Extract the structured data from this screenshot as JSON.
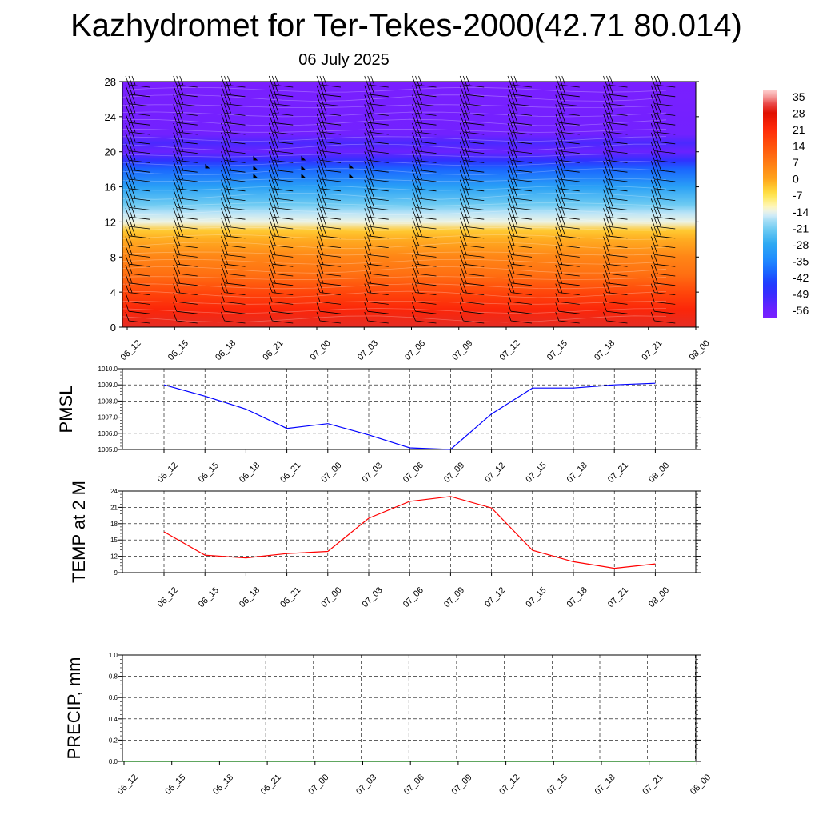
{
  "header": {
    "title": "Kazhydromet for Ter-Tekes-2000(42.71 80.014)",
    "date": "06 July 2025"
  },
  "time_labels_full": [
    "06_12",
    "06_15",
    "06_18",
    "06_21",
    "07_00",
    "07_03",
    "07_06",
    "07_09",
    "07_12",
    "07_15",
    "07_18",
    "07_21",
    "08_00"
  ],
  "chart_data": [
    {
      "id": "cross-section",
      "type": "heatmap",
      "xcategories": [
        "06_12",
        "06_15",
        "06_18",
        "06_21",
        "07_00",
        "07_03",
        "07_06",
        "07_09",
        "07_12",
        "07_15",
        "07_18",
        "07_21",
        "08_00"
      ],
      "ylim": [
        0,
        28
      ],
      "yticks": [
        0,
        4,
        8,
        12,
        16,
        20,
        24,
        28
      ],
      "colorbar": {
        "labels": [
          "35",
          "28",
          "21",
          "14",
          "7",
          "0",
          "-7",
          "-14",
          "-21",
          "-28",
          "-35",
          "-42",
          "-49",
          "-56"
        ],
        "range": [
          -60,
          38
        ]
      },
      "temperature_profile": [
        {
          "height": 0,
          "value": 30
        },
        {
          "height": 2,
          "value": 22
        },
        {
          "height": 4,
          "value": 16
        },
        {
          "height": 6,
          "value": 9
        },
        {
          "height": 8,
          "value": 5
        },
        {
          "height": 10,
          "value": -1
        },
        {
          "height": 11,
          "value": -4
        },
        {
          "height": 12,
          "value": -14
        },
        {
          "height": 13,
          "value": -17
        },
        {
          "height": 14,
          "value": -22
        },
        {
          "height": 16,
          "value": -30
        },
        {
          "height": 18,
          "value": -40
        },
        {
          "height": 19,
          "value": -48
        },
        {
          "height": 20,
          "value": -56
        },
        {
          "height": 21,
          "value": -52
        },
        {
          "height": 22,
          "value": -58
        },
        {
          "height": 28,
          "value": -60
        }
      ],
      "wind_barb_columns": 12,
      "wind_barb_rows": 26
    },
    {
      "id": "pmsl",
      "type": "line",
      "ylabel": "PMSL",
      "x": [
        "06_12",
        "06_15",
        "06_18",
        "06_21",
        "07_00",
        "07_03",
        "07_06",
        "07_09",
        "07_12",
        "07_15",
        "07_18",
        "07_21",
        "08_00"
      ],
      "values": [
        1009.0,
        1008.3,
        1007.5,
        1006.3,
        1006.6,
        1005.9,
        1005.1,
        1005.0,
        1007.2,
        1008.8,
        1008.8,
        1009.0,
        1009.1
      ],
      "ylim": [
        1005.0,
        1010.0
      ],
      "ytick_labels": [
        "1005.0",
        "1006.0",
        "1007.0",
        "1008.0",
        "1009.0",
        "1010.0"
      ],
      "color": "#0000ff"
    },
    {
      "id": "temp2m",
      "type": "line",
      "ylabel": "TEMP at 2 M",
      "x": [
        "06_12",
        "06_15",
        "06_18",
        "06_21",
        "07_00",
        "07_03",
        "07_06",
        "07_09",
        "07_12",
        "07_15",
        "07_18",
        "07_21",
        "08_00"
      ],
      "values": [
        16.5,
        12.2,
        11.7,
        12.5,
        12.9,
        19.0,
        22.1,
        23.0,
        20.9,
        13.1,
        11.0,
        9.8,
        10.6
      ],
      "ylim": [
        9,
        24
      ],
      "ytick_labels": [
        "9",
        "12",
        "15",
        "18",
        "21",
        "24"
      ],
      "color": "#ff0000"
    },
    {
      "id": "precip",
      "type": "line",
      "ylabel": "PRECIP, mm",
      "x": [
        "06_12",
        "06_15",
        "06_18",
        "06_21",
        "07_00",
        "07_03",
        "07_06",
        "07_09",
        "07_12",
        "07_15",
        "07_18",
        "07_21",
        "08_00"
      ],
      "values": [
        0,
        0,
        0,
        0,
        0,
        0,
        0,
        0,
        0,
        0,
        0,
        0,
        0
      ],
      "ylim": [
        0,
        1
      ],
      "ytick_labels": [
        "0.0",
        "0.2",
        "0.4",
        "0.6",
        "0.8",
        "1.0"
      ],
      "color": "#007000"
    }
  ]
}
